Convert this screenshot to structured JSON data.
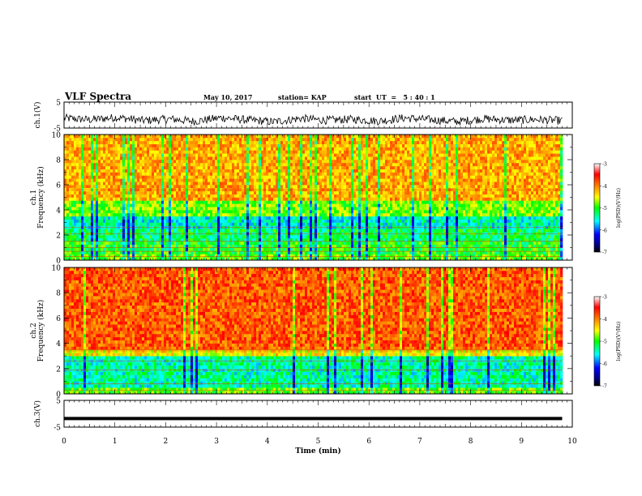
{
  "header": {
    "title": "VLF Spectra",
    "date": "May 10, 2017",
    "station": "station= KAP",
    "start_ut": "start  UT  =   5 : 40 : 1"
  },
  "chart_data": [
    {
      "type": "line",
      "panel": "ch1-waveform",
      "ylabel": "ch.1(V)",
      "yticks": [
        "5",
        "-5"
      ],
      "ylim": [
        -5,
        5
      ],
      "xlim": [
        0,
        10
      ],
      "description_level": "noisy signal around 0 to -3 V",
      "series": [
        {
          "values": [
            -1.2,
            -1.8,
            -0.9,
            -2.1,
            -1.5,
            -2.4,
            -1.0,
            -1.9,
            -2.6,
            -1.3,
            -2.0,
            -1.6,
            -2.3,
            -1.1,
            -1.8,
            -2.5,
            -1.4,
            -2.0,
            -1.7,
            -2.2
          ]
        }
      ]
    },
    {
      "type": "heatmap",
      "panel": "ch1-spectrogram",
      "ylabel": "ch.1\nFrequency (kHz)",
      "yticks": [
        "0",
        "2",
        "4",
        "6",
        "8",
        "10"
      ],
      "ylim": [
        0,
        10
      ],
      "xlim": [
        0,
        10
      ],
      "colorbar": {
        "label": "log(PSD)(V²/Hz)",
        "ticks": [
          "-3",
          "-4",
          "-5",
          "-6",
          "-7"
        ],
        "range": [
          -7,
          -3
        ]
      }
    },
    {
      "type": "heatmap",
      "panel": "ch2-spectrogram",
      "ylabel": "ch.2\nFrequency (kHz)",
      "yticks": [
        "0",
        "2",
        "4",
        "6",
        "8",
        "10"
      ],
      "ylim": [
        0,
        10
      ],
      "xlim": [
        0,
        10
      ],
      "colorbar": {
        "label": "log(PSD)(V²/Hz)",
        "ticks": [
          "-3",
          "-4",
          "-5",
          "-6",
          "-7"
        ],
        "range": [
          -7,
          -3
        ]
      }
    },
    {
      "type": "line",
      "panel": "ch3-waveform",
      "ylabel": "ch.3(V)",
      "yticks": [
        "5",
        "-5"
      ],
      "ylim": [
        -5,
        5
      ],
      "xlim": [
        0,
        10
      ],
      "series": [
        {
          "values": [
            -1.8,
            -1.8
          ]
        }
      ]
    }
  ],
  "xaxis": {
    "label": "Time (min)",
    "ticks": [
      "0",
      "1",
      "2",
      "3",
      "4",
      "5",
      "6",
      "7",
      "8",
      "9",
      "10"
    ]
  },
  "colors": {
    "axis": "#000000",
    "waveform": "#000000",
    "colormap": [
      "#ffffff",
      "#000080",
      "#0000ff",
      "#00ffff",
      "#00ff00",
      "#ffff00",
      "#ff8000",
      "#ff0000",
      "#ffffff"
    ]
  }
}
